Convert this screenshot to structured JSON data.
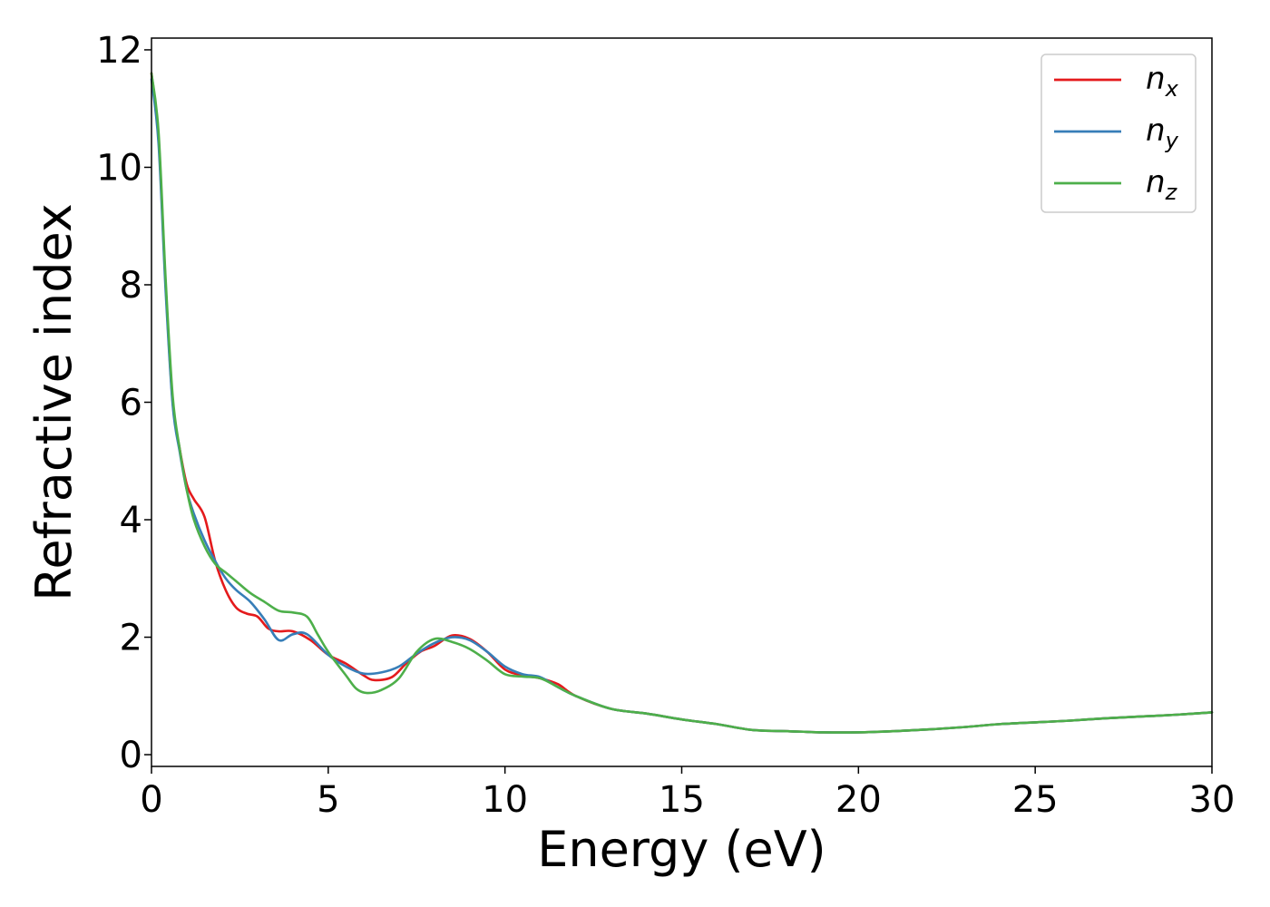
{
  "chart_data": {
    "type": "line",
    "title": "",
    "xlabel": "Energy (eV)",
    "ylabel": "Refractive index",
    "xlim": [
      0,
      30
    ],
    "ylim": [
      -0.2,
      12.2
    ],
    "xticks": [
      0,
      5,
      10,
      15,
      20,
      25,
      30
    ],
    "yticks": [
      0,
      2,
      4,
      6,
      8,
      10,
      12
    ],
    "grid": false,
    "legend_position": "top-right",
    "series": [
      {
        "name": "n",
        "subscript": "x",
        "color": "#e41a1c",
        "points": [
          [
            0,
            11.6
          ],
          [
            0.2,
            10.5
          ],
          [
            0.4,
            8.0
          ],
          [
            0.6,
            6.0
          ],
          [
            0.8,
            5.2
          ],
          [
            1.0,
            4.6
          ],
          [
            1.2,
            4.35
          ],
          [
            1.5,
            4.05
          ],
          [
            1.8,
            3.3
          ],
          [
            2.1,
            2.8
          ],
          [
            2.4,
            2.5
          ],
          [
            2.7,
            2.4
          ],
          [
            3.0,
            2.35
          ],
          [
            3.3,
            2.15
          ],
          [
            3.6,
            2.1
          ],
          [
            4.0,
            2.1
          ],
          [
            4.5,
            1.95
          ],
          [
            5.0,
            1.7
          ],
          [
            5.5,
            1.55
          ],
          [
            6.0,
            1.35
          ],
          [
            6.3,
            1.27
          ],
          [
            6.8,
            1.32
          ],
          [
            7.2,
            1.55
          ],
          [
            7.6,
            1.75
          ],
          [
            8.0,
            1.85
          ],
          [
            8.5,
            2.03
          ],
          [
            9.0,
            1.97
          ],
          [
            9.5,
            1.75
          ],
          [
            10.0,
            1.45
          ],
          [
            10.5,
            1.35
          ],
          [
            11.0,
            1.3
          ],
          [
            11.5,
            1.2
          ],
          [
            12.0,
            1.0
          ],
          [
            13.0,
            0.78
          ],
          [
            14.0,
            0.7
          ],
          [
            15.0,
            0.6
          ],
          [
            16.0,
            0.52
          ],
          [
            17.0,
            0.42
          ],
          [
            18.0,
            0.4
          ],
          [
            19.0,
            0.38
          ],
          [
            20.0,
            0.38
          ],
          [
            21.0,
            0.4
          ],
          [
            22.0,
            0.43
          ],
          [
            23.0,
            0.47
          ],
          [
            24.0,
            0.52
          ],
          [
            25.0,
            0.55
          ],
          [
            26.0,
            0.58
          ],
          [
            27.0,
            0.62
          ],
          [
            28.0,
            0.65
          ],
          [
            29.0,
            0.68
          ],
          [
            30.0,
            0.72
          ]
        ]
      },
      {
        "name": "n",
        "subscript": "y",
        "color": "#377eb8",
        "points": [
          [
            0,
            11.5
          ],
          [
            0.2,
            10.4
          ],
          [
            0.4,
            7.9
          ],
          [
            0.6,
            5.95
          ],
          [
            0.8,
            5.15
          ],
          [
            1.0,
            4.5
          ],
          [
            1.2,
            4.1
          ],
          [
            1.5,
            3.65
          ],
          [
            1.8,
            3.3
          ],
          [
            2.1,
            3.0
          ],
          [
            2.4,
            2.8
          ],
          [
            2.8,
            2.6
          ],
          [
            3.2,
            2.3
          ],
          [
            3.6,
            1.95
          ],
          [
            4.0,
            2.05
          ],
          [
            4.4,
            2.05
          ],
          [
            5.0,
            1.7
          ],
          [
            5.5,
            1.5
          ],
          [
            6.0,
            1.38
          ],
          [
            6.5,
            1.4
          ],
          [
            7.0,
            1.5
          ],
          [
            7.5,
            1.72
          ],
          [
            8.0,
            1.9
          ],
          [
            8.5,
            2.0
          ],
          [
            9.0,
            1.95
          ],
          [
            9.5,
            1.75
          ],
          [
            10.0,
            1.5
          ],
          [
            10.5,
            1.37
          ],
          [
            11.0,
            1.32
          ],
          [
            11.5,
            1.15
          ],
          [
            12.0,
            1.0
          ],
          [
            13.0,
            0.78
          ],
          [
            14.0,
            0.7
          ],
          [
            15.0,
            0.6
          ],
          [
            16.0,
            0.52
          ],
          [
            17.0,
            0.42
          ],
          [
            18.0,
            0.4
          ],
          [
            19.0,
            0.38
          ],
          [
            20.0,
            0.38
          ],
          [
            21.0,
            0.4
          ],
          [
            22.0,
            0.43
          ],
          [
            23.0,
            0.47
          ],
          [
            24.0,
            0.52
          ],
          [
            25.0,
            0.55
          ],
          [
            26.0,
            0.58
          ],
          [
            27.0,
            0.62
          ],
          [
            28.0,
            0.65
          ],
          [
            29.0,
            0.68
          ],
          [
            30.0,
            0.72
          ]
        ]
      },
      {
        "name": "n",
        "subscript": "z",
        "color": "#4daf4a",
        "points": [
          [
            0,
            11.6
          ],
          [
            0.2,
            10.6
          ],
          [
            0.4,
            8.1
          ],
          [
            0.6,
            6.1
          ],
          [
            0.8,
            5.2
          ],
          [
            1.0,
            4.5
          ],
          [
            1.2,
            4.0
          ],
          [
            1.5,
            3.55
          ],
          [
            1.8,
            3.25
          ],
          [
            2.1,
            3.1
          ],
          [
            2.4,
            2.95
          ],
          [
            2.8,
            2.75
          ],
          [
            3.2,
            2.6
          ],
          [
            3.6,
            2.45
          ],
          [
            4.0,
            2.42
          ],
          [
            4.4,
            2.35
          ],
          [
            4.7,
            2.05
          ],
          [
            5.0,
            1.75
          ],
          [
            5.5,
            1.35
          ],
          [
            5.8,
            1.12
          ],
          [
            6.1,
            1.05
          ],
          [
            6.5,
            1.1
          ],
          [
            7.0,
            1.3
          ],
          [
            7.5,
            1.75
          ],
          [
            8.0,
            1.97
          ],
          [
            8.5,
            1.92
          ],
          [
            9.0,
            1.8
          ],
          [
            9.5,
            1.6
          ],
          [
            10.0,
            1.37
          ],
          [
            10.5,
            1.33
          ],
          [
            11.0,
            1.3
          ],
          [
            11.5,
            1.15
          ],
          [
            12.0,
            1.0
          ],
          [
            13.0,
            0.78
          ],
          [
            14.0,
            0.7
          ],
          [
            15.0,
            0.6
          ],
          [
            16.0,
            0.52
          ],
          [
            17.0,
            0.42
          ],
          [
            18.0,
            0.4
          ],
          [
            19.0,
            0.38
          ],
          [
            20.0,
            0.38
          ],
          [
            21.0,
            0.4
          ],
          [
            22.0,
            0.43
          ],
          [
            23.0,
            0.47
          ],
          [
            24.0,
            0.52
          ],
          [
            25.0,
            0.55
          ],
          [
            26.0,
            0.58
          ],
          [
            27.0,
            0.62
          ],
          [
            28.0,
            0.65
          ],
          [
            29.0,
            0.68
          ],
          [
            30.0,
            0.72
          ]
        ]
      }
    ]
  }
}
